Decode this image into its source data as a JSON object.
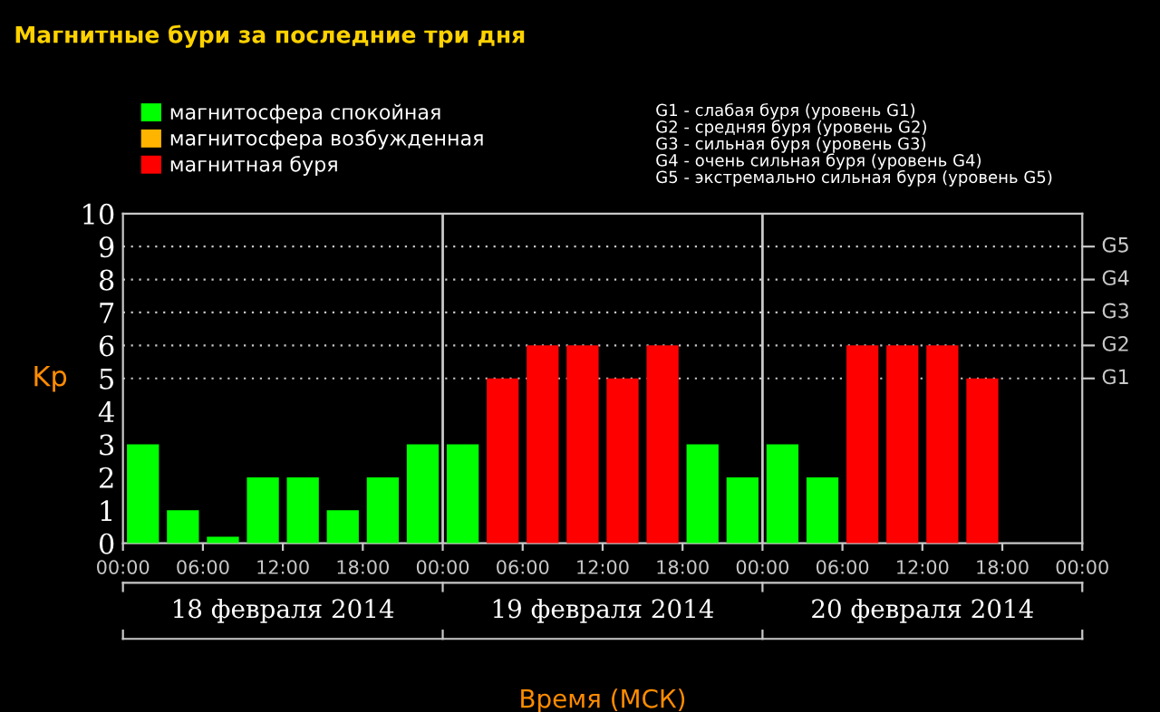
{
  "chart_data": {
    "type": "bar",
    "title": "Магнитные бури за последние три дня",
    "xlabel": "Время (МСК)",
    "ylabel": "Kp",
    "x": [
      "2014-02-18T01:30",
      "2014-02-18T04:30",
      "2014-02-18T07:30",
      "2014-02-18T10:30",
      "2014-02-18T13:30",
      "2014-02-18T16:30",
      "2014-02-18T19:30",
      "2014-02-18T22:30",
      "2014-02-19T01:30",
      "2014-02-19T04:30",
      "2014-02-19T07:30",
      "2014-02-19T10:30",
      "2014-02-19T13:30",
      "2014-02-19T16:30",
      "2014-02-19T19:30",
      "2014-02-19T22:30",
      "2014-02-20T01:30",
      "2014-02-20T04:30",
      "2014-02-20T07:30",
      "2014-02-20T10:30",
      "2014-02-20T13:30",
      "2014-02-20T16:30"
    ],
    "series": [
      {
        "name": "магнитосфера спокойная",
        "color": "#00ff00",
        "values": [
          3,
          1,
          0.2,
          2,
          2,
          1,
          2,
          3,
          3,
          null,
          null,
          null,
          null,
          null,
          3,
          2,
          3,
          2,
          null,
          null,
          null,
          null
        ]
      },
      {
        "name": "магнитосфера возбужденная",
        "color": "#ffb400",
        "values": [
          null,
          null,
          null,
          null,
          null,
          null,
          null,
          null,
          null,
          null,
          null,
          null,
          null,
          null,
          null,
          null,
          null,
          null,
          null,
          null,
          null,
          null
        ]
      },
      {
        "name": "магнитная буря",
        "color": "#ff0000",
        "values": [
          null,
          null,
          null,
          null,
          null,
          null,
          null,
          null,
          null,
          5,
          6,
          6,
          5,
          6,
          null,
          null,
          null,
          null,
          6,
          6,
          6,
          5
        ]
      }
    ],
    "xlim": [
      "2014-02-18T00:00",
      "2014-02-21T00:00"
    ],
    "xticks": [
      {
        "value": "2014-02-18T00:00",
        "label": "00:00"
      },
      {
        "value": "2014-02-18T06:00",
        "label": "06:00"
      },
      {
        "value": "2014-02-18T12:00",
        "label": "12:00"
      },
      {
        "value": "2014-02-18T18:00",
        "label": "18:00"
      },
      {
        "value": "2014-02-19T00:00",
        "label": "00:00"
      },
      {
        "value": "2014-02-19T06:00",
        "label": "06:00"
      },
      {
        "value": "2014-02-19T12:00",
        "label": "12:00"
      },
      {
        "value": "2014-02-19T18:00",
        "label": "18:00"
      },
      {
        "value": "2014-02-20T00:00",
        "label": "00:00"
      },
      {
        "value": "2014-02-20T06:00",
        "label": "06:00"
      },
      {
        "value": "2014-02-20T12:00",
        "label": "12:00"
      },
      {
        "value": "2014-02-20T18:00",
        "label": "18:00"
      },
      {
        "value": "2014-02-21T00:00",
        "label": "00:00"
      }
    ],
    "ylim": [
      0,
      10
    ],
    "yticks": [
      0,
      1,
      2,
      3,
      4,
      5,
      6,
      7,
      8,
      9,
      10
    ],
    "ref_lines": [
      {
        "axis": "y",
        "value": 5,
        "label": "G1",
        "line_style": "dotted",
        "color": "#c8c8c8"
      },
      {
        "axis": "y",
        "value": 6,
        "label": "G2",
        "line_style": "dotted",
        "color": "#c8c8c8"
      },
      {
        "axis": "y",
        "value": 7,
        "label": "G3",
        "line_style": "dotted",
        "color": "#c8c8c8"
      },
      {
        "axis": "y",
        "value": 8,
        "label": "G4",
        "line_style": "dotted",
        "color": "#c8c8c8"
      },
      {
        "axis": "y",
        "value": 9,
        "label": "G5",
        "line_style": "dotted",
        "color": "#c8c8c8"
      },
      {
        "axis": "x",
        "value": "2014-02-19T00:00",
        "color": "#c8c8c8"
      },
      {
        "axis": "x",
        "value": "2014-02-20T00:00",
        "color": "#c8c8c8"
      }
    ],
    "annotations": [
      "18 февраля 2014",
      "19 февраля 2014",
      "20 февраля 2014",
      "G1 - слабая буря (уровень G1)\nG2 - средняя буря (уровень G2)\nG3 - сильная буря (уровень G3)\nG4 - очень сильная буря (уровень G4)\nG5 - экстремально сильная буря (уровень G5)"
    ],
    "legend": "top left"
  }
}
